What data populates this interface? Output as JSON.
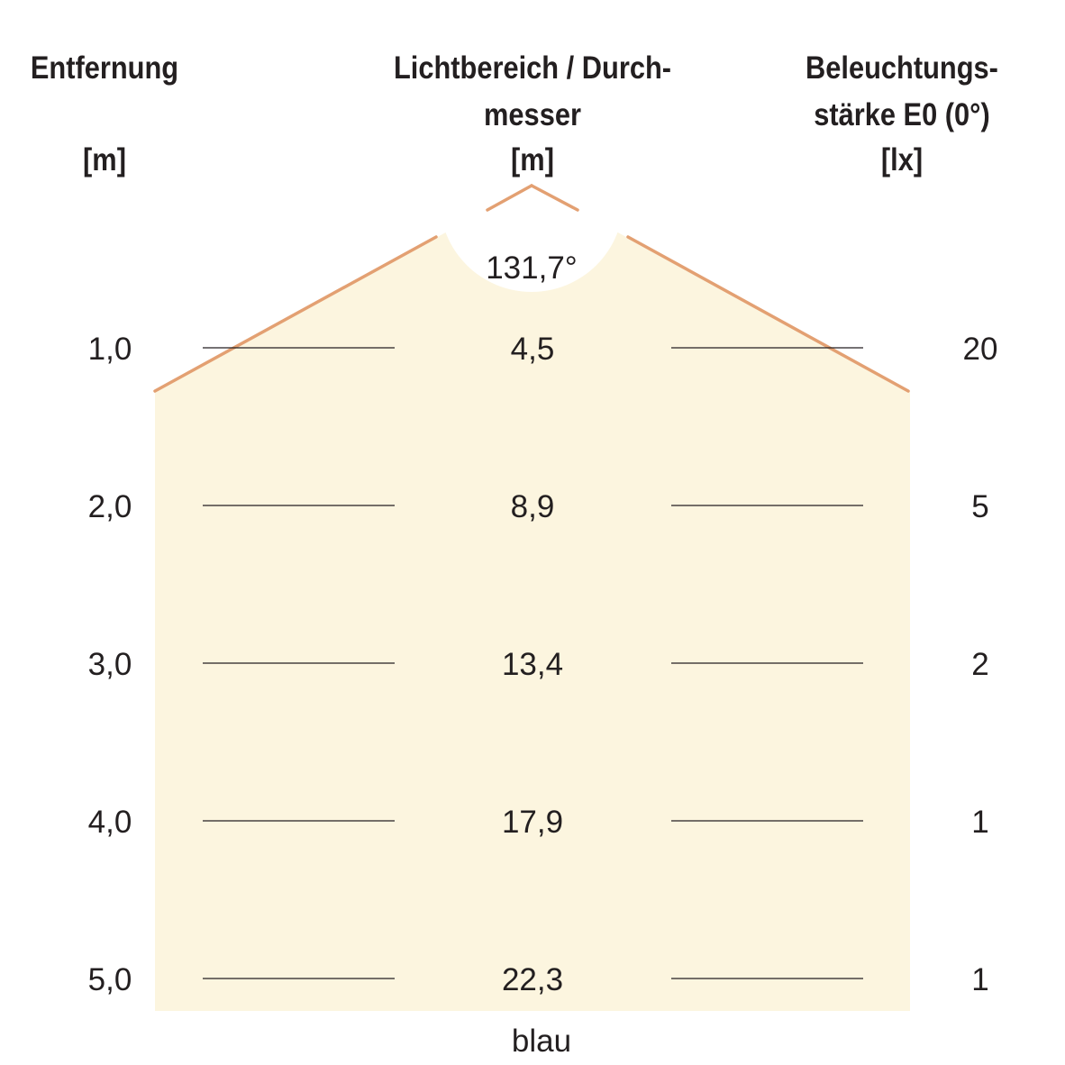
{
  "headers": {
    "distance": {
      "line1": "Entfernung",
      "unit": "[m]"
    },
    "diameter": {
      "line1": "Lichtbereich / Durch-",
      "line2": "messer",
      "unit": "[m]"
    },
    "illuminance": {
      "line1": "Beleuchtungs-",
      "line2": "stärke E0 (0°)",
      "unit": "[lx]"
    }
  },
  "beam_angle": "131,7°",
  "rows": [
    {
      "distance": "1,0",
      "diameter": "4,5",
      "lux": "20"
    },
    {
      "distance": "2,0",
      "diameter": "8,9",
      "lux": "5"
    },
    {
      "distance": "3,0",
      "diameter": "13,4",
      "lux": "2"
    },
    {
      "distance": "4,0",
      "diameter": "17,9",
      "lux": "1"
    },
    {
      "distance": "5,0",
      "diameter": "22,3",
      "lux": "1"
    }
  ],
  "color_label": "blau",
  "colors": {
    "fill": "#fcf5df",
    "beam_line": "#e3a072",
    "rule": "#231f20",
    "text": "#231f20"
  }
}
